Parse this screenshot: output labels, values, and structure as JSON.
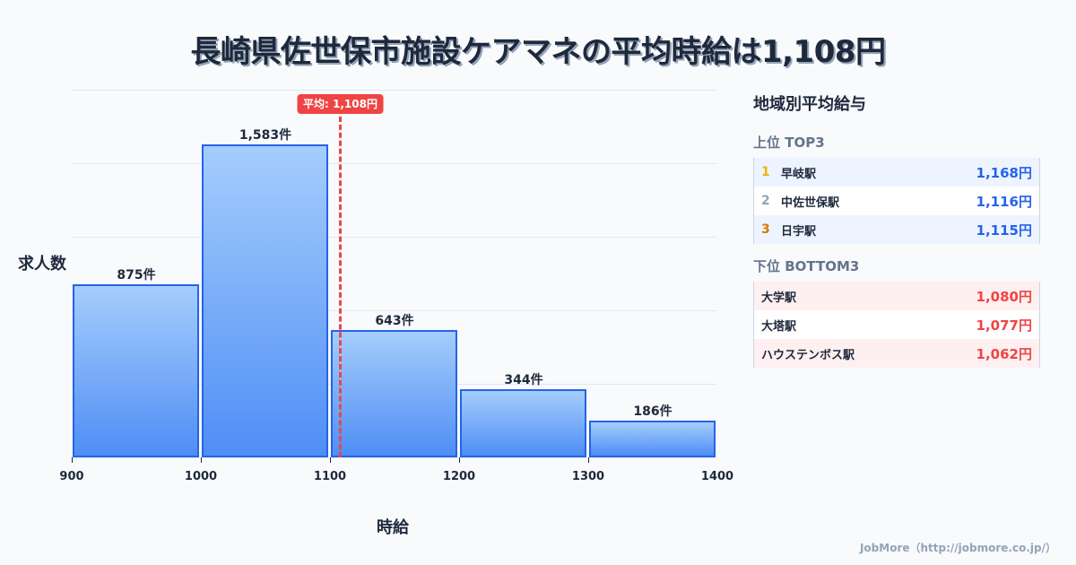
{
  "header": {
    "title": "長崎県佐世保市施設ケアマネの平均時給は1,108円"
  },
  "chart_data": {
    "type": "bar",
    "title": "長崎県佐世保市施設ケアマネの平均時給は1,108円",
    "xlabel": "時給",
    "ylabel": "求人数",
    "bins": [
      {
        "from": 900,
        "to": 1000,
        "count": 875,
        "label": "875件"
      },
      {
        "from": 1000,
        "to": 1100,
        "count": 1583,
        "label": "1,583件"
      },
      {
        "from": 1100,
        "to": 1200,
        "count": 643,
        "label": "643件"
      },
      {
        "from": 1200,
        "to": 1300,
        "count": 344,
        "label": "344件"
      },
      {
        "from": 1300,
        "to": 1400,
        "count": 186,
        "label": "186件"
      }
    ],
    "categories": [
      "900-1000",
      "1000-1100",
      "1100-1200",
      "1200-1300",
      "1300-1400"
    ],
    "values": [
      875,
      1583,
      643,
      344,
      186
    ],
    "x_ticks": [
      "900",
      "1000",
      "1100",
      "1200",
      "1300",
      "1400"
    ],
    "xlim": [
      900,
      1400
    ],
    "ylim": [
      0,
      1860
    ],
    "grid": true,
    "average": {
      "value": 1108,
      "label": "平均: 1,108円"
    }
  },
  "panel": {
    "title": "地域別平均給与",
    "top_title": "上位 TOP3",
    "top": [
      {
        "rank": "1",
        "name": "早岐駅",
        "value": "1,168円"
      },
      {
        "rank": "2",
        "name": "中佐世保駅",
        "value": "1,116円"
      },
      {
        "rank": "3",
        "name": "日宇駅",
        "value": "1,115円"
      }
    ],
    "bottom_title": "下位 BOTTOM3",
    "bottom": [
      {
        "name": "大学駅",
        "value": "1,080円"
      },
      {
        "name": "大塔駅",
        "value": "1,077円"
      },
      {
        "name": "ハウステンボス駅",
        "value": "1,062円"
      }
    ]
  },
  "colors": {
    "bar_fill_top": "#a5cdfc",
    "bar_fill_bottom": "#4f8ef5",
    "bar_border": "#2563eb",
    "average": "#ef4444",
    "rank1": "#eab308",
    "rank2": "#94a3b8",
    "rank3": "#d97706",
    "top_value": "#2563eb",
    "bottom_value": "#ef4444"
  },
  "footer": {
    "credit": "JobMore（http://jobmore.co.jp/）"
  }
}
